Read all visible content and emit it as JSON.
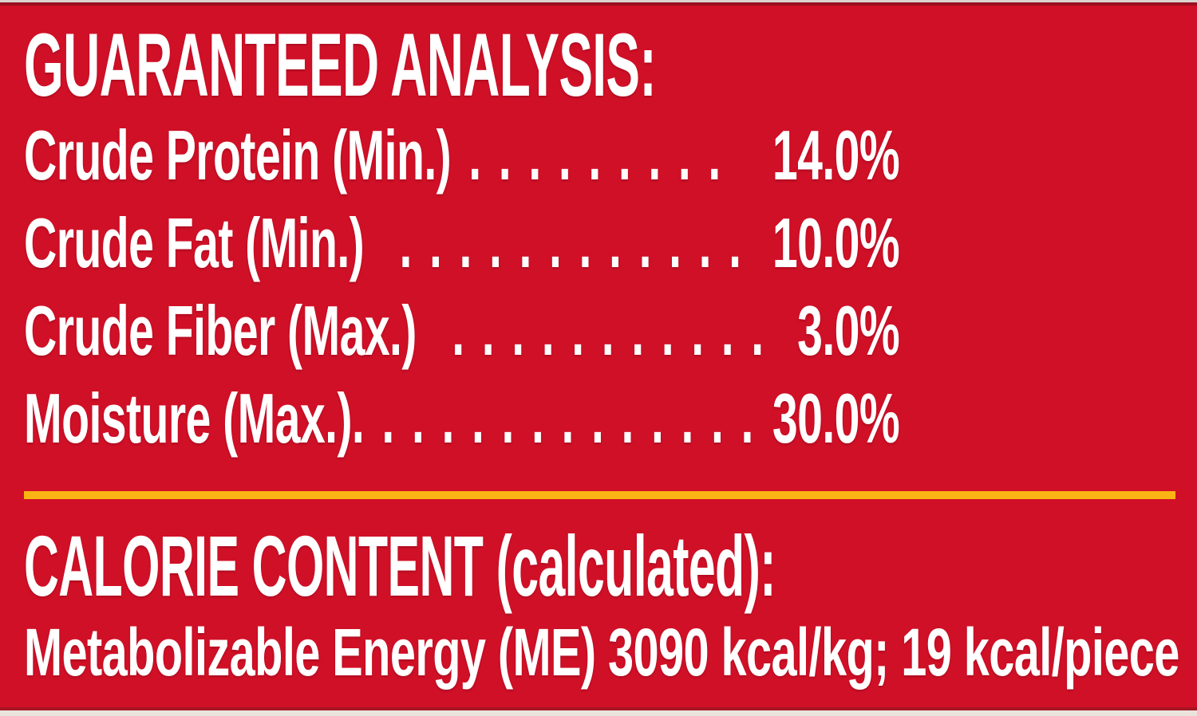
{
  "theme": {
    "background": "#D01027",
    "text": "#FFFFFF",
    "divider": "#FCB415"
  },
  "guaranteed_analysis": {
    "title": "GUARANTEED ANALYSIS:",
    "rows": [
      {
        "name": "Crude Protein (Min.)",
        "dots": " . . . . . . . . .",
        "value": "14.0%"
      },
      {
        "name": "Crude Fat (Min.)",
        "dots": "  . . . . . . . . . . . .",
        "value": "10.0%"
      },
      {
        "name": "Crude Fiber (Max.)",
        "dots": "  . . . . . . . . . . .",
        "value": "3.0%"
      },
      {
        "name": "Moisture (Max.)",
        "dots": ". . . . . . . . . . . . . .",
        "value": "30.0%"
      }
    ]
  },
  "calorie_content": {
    "title": "CALORIE CONTENT (calculated):",
    "line": "Metabolizable Energy (ME) 3090 kcal/kg; 19 kcal/piece"
  }
}
